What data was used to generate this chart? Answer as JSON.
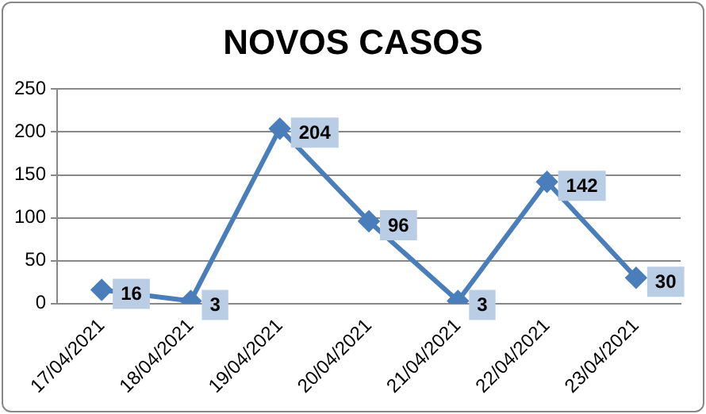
{
  "chart_data": {
    "type": "line",
    "title": "NOVOS CASOS",
    "categories": [
      "17/04/2021",
      "18/04/2021",
      "19/04/2021",
      "20/04/2021",
      "21/04/2021",
      "22/04/2021",
      "23/04/2021"
    ],
    "series": [
      {
        "color": "#4a7ebb",
        "values": [
          16,
          3,
          204,
          96,
          3,
          142,
          30
        ]
      }
    ],
    "ylim": [
      0,
      250
    ],
    "yticks": [
      0,
      50,
      100,
      150,
      200,
      250
    ],
    "grid": "y",
    "legend": false,
    "marker": "diamond",
    "line_style": "solid",
    "data_labels": true
  }
}
